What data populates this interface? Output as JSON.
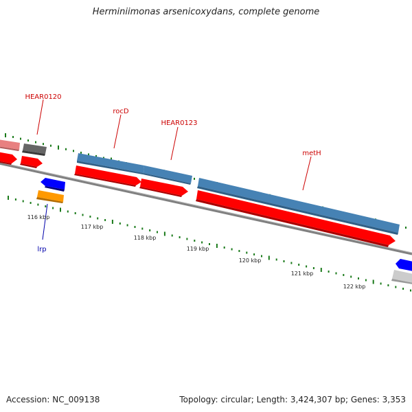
{
  "title": "Herminiimonas arsenicoxydans, complete genome",
  "footer": {
    "accession": "Accession: NC_009138",
    "summary": "Topology: circular; Length: 3,424,307 bp; Genes: 3,353"
  },
  "colors": {
    "gene_red": "#ff0000",
    "gene_blue": "#4682b4",
    "gene_dark_blue": "#0000ff",
    "gene_orange": "#ff9900",
    "gene_gray": "#666666",
    "gene_pink": "#e88080",
    "gene_light_gray": "#cccccc",
    "backbone": "#808080",
    "tick_green": "#1a7a1a",
    "label_red": "#cc0000",
    "label_blue": "#0000aa"
  },
  "ruler": {
    "labels": [
      "116 kbp",
      "117 kbp",
      "118 kbp",
      "119 kbp",
      "120 kbp",
      "121 kbp",
      "122 kbp"
    ]
  },
  "gene_labels": [
    {
      "id": "hear0120",
      "text": "HEAR0120",
      "color": "red"
    },
    {
      "id": "rocd",
      "text": "rocD",
      "color": "red"
    },
    {
      "id": "hear0123",
      "text": "HEAR0123",
      "color": "red"
    },
    {
      "id": "meth",
      "text": "metH",
      "color": "red"
    },
    {
      "id": "lrp",
      "text": "lrp",
      "color": "blue"
    }
  ]
}
